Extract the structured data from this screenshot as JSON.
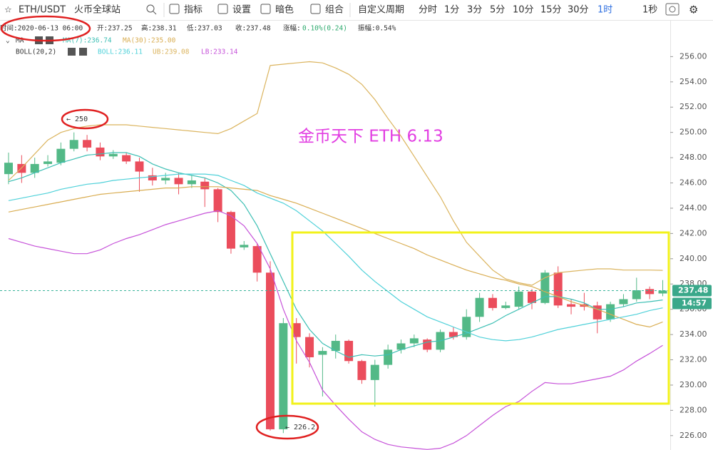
{
  "toolbar": {
    "symbol": "ETH/USDT",
    "exchange": "火币全球站",
    "buttons": [
      "指标",
      "设置",
      "暗色",
      "组合"
    ],
    "periods": [
      "自定义周期",
      "分时",
      "1分",
      "3分",
      "5分",
      "10分",
      "15分",
      "30分",
      "1时"
    ],
    "extra": "1秒"
  },
  "info": {
    "time": "时间:2020-06-13 06:00",
    "open": "开:237.25",
    "high": "高:238.31",
    "low": "低:237.03",
    "close": "收:237.48",
    "change_label": "涨幅:",
    "change": "0.10%(0.24)",
    "amplitude": "振幅:0.54%"
  },
  "legend": {
    "ma": "MA",
    "ma7": "MA(7):236.74",
    "ma30": "MA(30):235.00",
    "boll": "BOLL(20,2)",
    "boll_mid": "BOLL:236.11",
    "ub": "UB:239.08",
    "lb": "LB:233.14"
  },
  "chart_data": {
    "type": "candlestick",
    "ylim": [
      224.86,
      258.9
    ],
    "yticks": [
      {
        "value": 226,
        "label": "226.00"
      },
      {
        "value": 228,
        "label": "228.00"
      },
      {
        "value": 230,
        "label": "230.00"
      },
      {
        "value": 232,
        "label": "232.00"
      },
      {
        "value": 234,
        "label": "234.00"
      },
      {
        "value": 236,
        "label": "236.00"
      },
      {
        "value": 238,
        "label": "238.00"
      },
      {
        "value": 240,
        "label": "240.00"
      },
      {
        "value": 242,
        "label": "242.00"
      },
      {
        "value": 244,
        "label": "244.00"
      },
      {
        "value": 246,
        "label": "246.00"
      },
      {
        "value": 248,
        "label": "248.00"
      },
      {
        "value": 250,
        "label": "250.00"
      },
      {
        "value": 252,
        "label": "252.00"
      },
      {
        "value": 254,
        "label": "254.00"
      },
      {
        "value": 256,
        "label": "256.00"
      }
    ],
    "up_color": "#53b987",
    "down_color": "#eb4d5c",
    "open": [
      246.7,
      247.5,
      246.8,
      247.5,
      247.6,
      248.7,
      249.4,
      248.8,
      248.1,
      248.2,
      247.7,
      246.6,
      246.2,
      246.4,
      245.9,
      246.1,
      245.5,
      243.7,
      240.9,
      241.0,
      238.9,
      226.5,
      234.9,
      233.8,
      232.4,
      232.7,
      233.5,
      231.9,
      230.4,
      231.6,
      232.8,
      233.3,
      233.6,
      232.8,
      234.2,
      233.8,
      235.4,
      236.9,
      236.1,
      236.2,
      237.4,
      236.5,
      238.9,
      236.4,
      236.4,
      236.3,
      235.2,
      236.4,
      236.8,
      237.6,
      237.25
    ],
    "high": [
      248.4,
      248.2,
      248.0,
      248.2,
      249.2,
      250.0,
      249.8,
      249.2,
      248.6,
      248.4,
      248.0,
      247.2,
      246.8,
      246.8,
      246.6,
      246.4,
      245.6,
      243.8,
      241.4,
      241.2,
      239.8,
      235.3,
      235.3,
      234.1,
      233.0,
      234.0,
      233.6,
      232.0,
      232.0,
      233.2,
      233.6,
      234.0,
      233.7,
      234.4,
      234.6,
      236.0,
      237.3,
      237.2,
      236.6,
      237.8,
      237.6,
      239.1,
      239.4,
      236.8,
      237.3,
      236.6,
      236.6,
      237.2,
      238.5,
      237.8,
      238.31
    ],
    "low": [
      245.9,
      246.0,
      246.4,
      247.3,
      247.4,
      248.5,
      248.5,
      247.8,
      247.9,
      247.5,
      245.3,
      245.8,
      245.9,
      245.1,
      245.6,
      244.1,
      242.9,
      240.4,
      240.7,
      238.2,
      226.4,
      226.2,
      231.7,
      231.4,
      229.1,
      232.1,
      231.7,
      230.1,
      228.3,
      231.3,
      232.5,
      233.0,
      232.6,
      232.6,
      233.6,
      233.6,
      235.0,
      235.9,
      236.0,
      236.0,
      236.0,
      236.4,
      236.1,
      235.6,
      235.9,
      234.1,
      235.0,
      236.2,
      236.6,
      236.8,
      237.03
    ],
    "close": [
      247.6,
      246.8,
      247.5,
      247.7,
      248.7,
      249.4,
      248.8,
      248.1,
      248.3,
      247.7,
      246.9,
      246.2,
      246.4,
      245.9,
      246.2,
      245.5,
      243.7,
      240.8,
      241.1,
      238.9,
      226.5,
      234.9,
      233.8,
      232.2,
      232.7,
      233.5,
      231.9,
      230.4,
      231.6,
      232.8,
      233.3,
      233.7,
      232.8,
      234.2,
      233.8,
      235.4,
      236.9,
      236.1,
      236.3,
      237.4,
      236.5,
      238.9,
      236.3,
      236.2,
      236.2,
      235.2,
      236.4,
      236.8,
      237.5,
      237.2,
      237.48
    ],
    "series": [
      {
        "name": "MA(7)",
        "color": "#3cbfb4",
        "values": [
          246.1,
          246.4,
          246.8,
          247.2,
          247.6,
          247.9,
          248.2,
          248.3,
          248.4,
          248.4,
          248.1,
          247.5,
          247.1,
          246.8,
          246.6,
          246.4,
          246.0,
          245.4,
          244.3,
          242.6,
          240.4,
          238.2,
          236.0,
          234.4,
          233.3,
          232.7,
          232.2,
          232.4,
          232.3,
          232.4,
          232.8,
          233.1,
          233.4,
          233.5,
          233.8,
          234.1,
          234.5,
          234.9,
          235.5,
          236.0,
          236.5,
          237.0,
          237.0,
          236.8,
          236.5,
          236.0,
          236.0,
          236.2,
          236.5,
          236.6,
          236.74
        ]
      },
      {
        "name": "MA(30)",
        "color": "#d9ad52",
        "values": [
          243.7,
          243.9,
          244.1,
          244.3,
          244.5,
          244.7,
          244.9,
          245.1,
          245.2,
          245.3,
          245.4,
          245.5,
          245.6,
          245.6,
          245.7,
          245.7,
          245.7,
          245.6,
          245.5,
          245.4,
          245.0,
          244.7,
          244.4,
          244.0,
          243.6,
          243.2,
          242.8,
          242.4,
          242.0,
          241.6,
          241.2,
          240.8,
          240.3,
          239.9,
          239.5,
          239.1,
          238.8,
          238.5,
          238.3,
          238.0,
          237.8,
          237.4,
          237.0,
          236.6,
          236.3,
          236.0,
          235.6,
          235.2,
          234.8,
          234.6,
          235.0
        ]
      },
      {
        "name": "BOLL",
        "color": "#4fd1d9",
        "values": [
          244.6,
          244.8,
          245.0,
          245.2,
          245.5,
          245.7,
          245.9,
          246.0,
          246.2,
          246.3,
          246.4,
          246.5,
          246.6,
          246.7,
          246.7,
          246.7,
          246.6,
          246.2,
          245.8,
          245.2,
          244.8,
          244.4,
          243.8,
          243.0,
          242.2,
          241.2,
          240.2,
          239.1,
          238.2,
          237.4,
          236.6,
          236.0,
          235.4,
          235.0,
          234.6,
          234.2,
          233.8,
          233.6,
          233.5,
          233.6,
          233.8,
          234.1,
          234.4,
          234.6,
          234.8,
          235.0,
          235.2,
          235.4,
          235.6,
          235.9,
          236.11
        ]
      },
      {
        "name": "UB",
        "color": "#dbb45e",
        "values": [
          246.2,
          247.2,
          248.3,
          249.4,
          250.0,
          250.3,
          250.5,
          250.6,
          250.6,
          250.6,
          250.5,
          250.4,
          250.3,
          250.2,
          250.1,
          250.0,
          249.9,
          250.3,
          250.9,
          251.5,
          255.3,
          255.4,
          255.5,
          255.6,
          255.5,
          255.1,
          254.6,
          253.8,
          252.6,
          251.1,
          249.7,
          248.1,
          246.5,
          244.9,
          243.0,
          241.3,
          240.2,
          239.1,
          238.4,
          238.1,
          237.9,
          238.5,
          238.9,
          239.0,
          239.1,
          239.2,
          239.2,
          239.1,
          239.1,
          239.1,
          239.08
        ]
      },
      {
        "name": "LB",
        "color": "#c652d9",
        "values": [
          241.6,
          241.3,
          241.0,
          240.8,
          240.6,
          240.4,
          240.4,
          240.7,
          241.2,
          241.6,
          241.9,
          242.3,
          242.7,
          243.0,
          243.3,
          243.6,
          243.8,
          243.4,
          242.6,
          241.2,
          239.2,
          236.0,
          233.5,
          231.8,
          229.6,
          228.4,
          227.3,
          226.3,
          225.7,
          225.3,
          225.1,
          225.0,
          224.9,
          225.0,
          225.4,
          226.0,
          226.8,
          227.6,
          228.3,
          228.7,
          229.5,
          230.2,
          230.1,
          230.1,
          230.3,
          230.5,
          230.7,
          231.2,
          231.9,
          232.5,
          233.14
        ]
      }
    ],
    "last_price": 237.48,
    "last_price_label": "237.48",
    "countdown": "14:57",
    "annotations": [
      "← 250",
      "← 226.2"
    ],
    "watermark": "金币天下 ETH 6.13"
  }
}
